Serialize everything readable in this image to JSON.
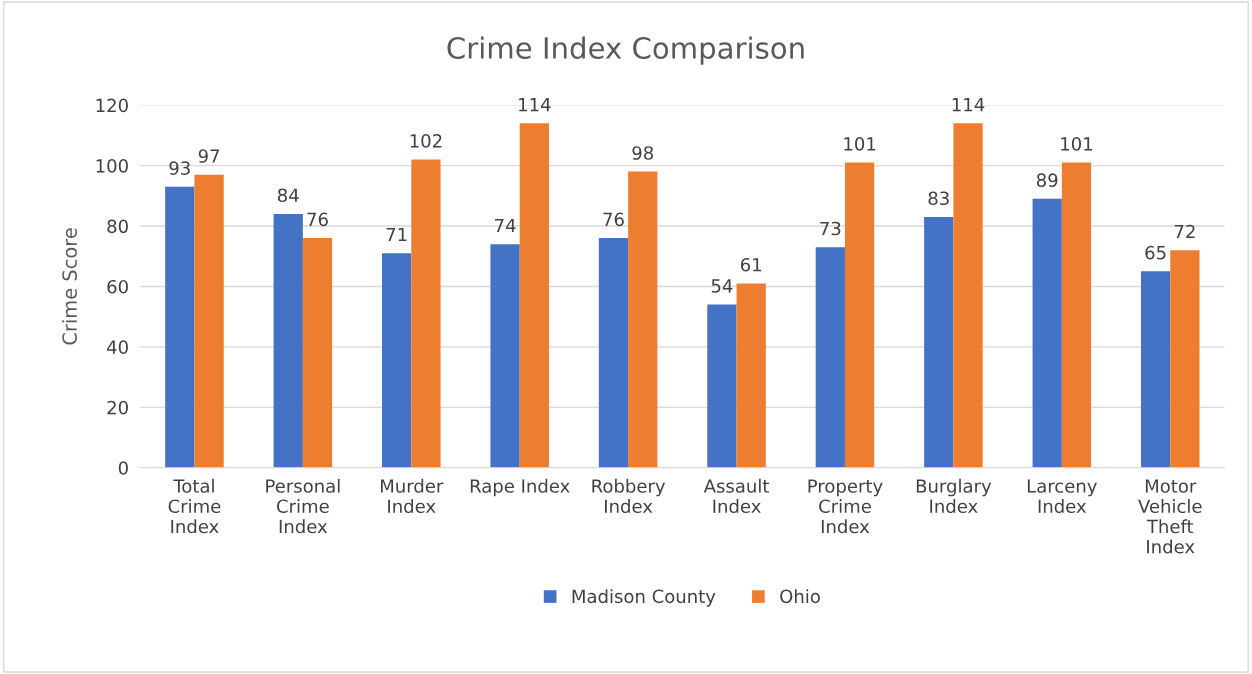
{
  "chart_data": {
    "type": "bar",
    "title": "Crime Index Comparison",
    "ylabel": "Crime Score",
    "categories": [
      "Total Crime Index",
      "Personal Crime Index",
      "Murder Index",
      "Rape Index",
      "Robbery Index",
      "Assault Index",
      "Property Crime Index",
      "Burglary Index",
      "Larceny Index",
      "Motor Vehicle Theft Index"
    ],
    "series": [
      {
        "name": "Madison County",
        "color": "#4472c4",
        "values": [
          93,
          84,
          71,
          74,
          76,
          54,
          73,
          83,
          89,
          65
        ]
      },
      {
        "name": "Ohio",
        "color": "#ed7d31",
        "values": [
          97,
          76,
          102,
          114,
          98,
          61,
          101,
          114,
          101,
          72
        ]
      }
    ],
    "ylim": [
      0,
      120
    ],
    "yticks": [
      0,
      20,
      40,
      60,
      80,
      100,
      120
    ],
    "grid": "y",
    "legend": "bottom",
    "data_labels": true
  }
}
